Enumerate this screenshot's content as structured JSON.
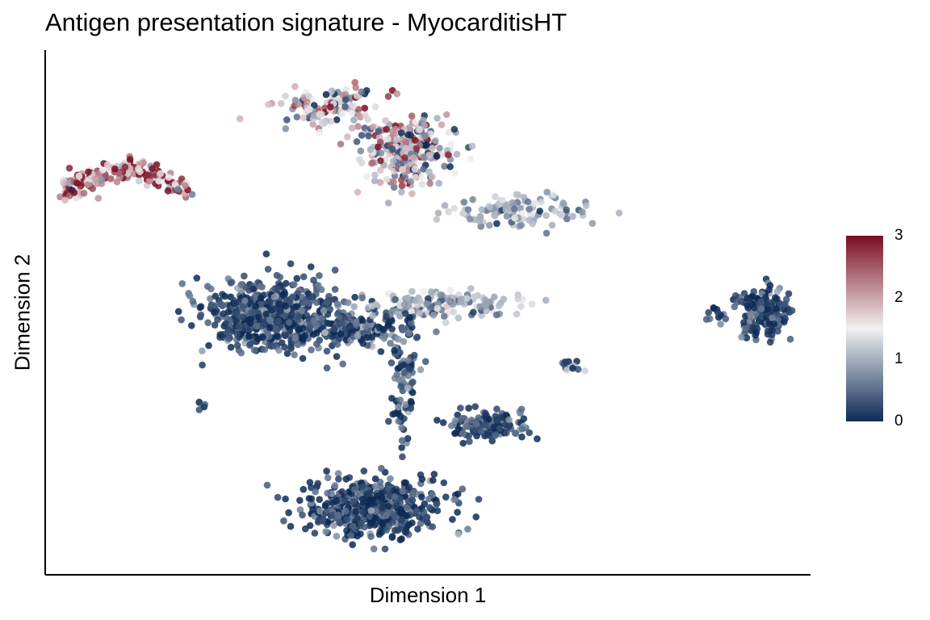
{
  "chart_data": {
    "type": "scatter",
    "title": "Antigen presentation signature - MyocarditisHT",
    "xlabel": "Dimension 1",
    "ylabel": "Dimension 2",
    "xlim": [
      0,
      100
    ],
    "ylim": [
      0,
      100
    ],
    "axis_ticks": false,
    "grid": false,
    "legend": {
      "type": "colorbar",
      "placement": "right",
      "ticks": [
        "3",
        "2",
        "1",
        "0"
      ],
      "range": [
        0,
        3
      ],
      "colors": [
        "#0d2a55",
        "#f1f1f1",
        "#7a0d22"
      ]
    },
    "clusters": [
      {
        "cx": 10,
        "cy": 78,
        "sx": 3.5,
        "sy": 2.5,
        "n": 180,
        "mean": 2.2,
        "shape": "arc"
      },
      {
        "cx": 37,
        "cy": 92,
        "sx": 3.5,
        "sy": 1.8,
        "n": 120,
        "mean": 1.5
      },
      {
        "cx": 47,
        "cy": 83,
        "sx": 3.2,
        "sy": 4.0,
        "n": 260,
        "mean": 1.4
      },
      {
        "cx": 62,
        "cy": 71,
        "sx": 4.5,
        "sy": 1.5,
        "n": 110,
        "mean": 0.9
      },
      {
        "cx": 29,
        "cy": 50,
        "sx": 4.2,
        "sy": 3.5,
        "n": 620,
        "mean": 0.25
      },
      {
        "cx": 41,
        "cy": 47,
        "sx": 3.5,
        "sy": 2.0,
        "n": 180,
        "mean": 0.3
      },
      {
        "cx": 52,
        "cy": 52,
        "sx": 5.0,
        "sy": 1.3,
        "n": 160,
        "mean": 1.0
      },
      {
        "cx": 47,
        "cy": 36,
        "sx": 1.0,
        "sy": 6.0,
        "n": 90,
        "mean": 0.3
      },
      {
        "cx": 58,
        "cy": 27,
        "sx": 2.5,
        "sy": 1.3,
        "n": 150,
        "mean": 0.25
      },
      {
        "cx": 43,
        "cy": 10,
        "sx": 4.5,
        "sy": 3.0,
        "n": 500,
        "mean": 0.2
      },
      {
        "cx": 94,
        "cy": 50,
        "sx": 1.8,
        "sy": 2.5,
        "n": 180,
        "mean": 0.2
      },
      {
        "cx": 88,
        "cy": 50,
        "sx": 1.0,
        "sy": 1.0,
        "n": 12,
        "mean": 0.3
      },
      {
        "cx": 69,
        "cy": 39,
        "sx": 0.8,
        "sy": 0.6,
        "n": 12,
        "mean": 0.6
      },
      {
        "cx": 20,
        "cy": 31,
        "sx": 0.6,
        "sy": 0.4,
        "n": 6,
        "mean": 0.4
      }
    ]
  }
}
